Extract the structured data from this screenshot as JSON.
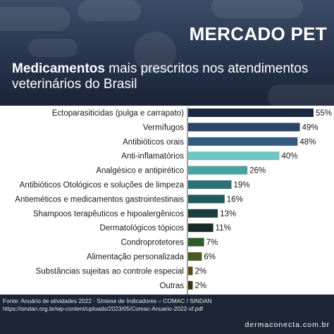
{
  "header": {
    "brand": "MERCADO PET",
    "title_bold": "Medicamentos",
    "title_rest": " mais prescritos nos atendimentos veterinários do Brasil"
  },
  "chart_data": {
    "type": "bar",
    "orientation": "horizontal",
    "xlim": [
      0,
      55
    ],
    "grid": false,
    "categories": [
      "Ectoparasiticidas (pulga e carrapato)",
      "Vermífugos",
      "Antibióticos orais",
      "Anti-inflamatórios",
      "Analgésico e antipirético",
      "Antibióticos Otológicos e soluções de limpeza",
      "Antieméticos e medicamentos gastrointestinais",
      "Shampoos terapêuticos e hipoalergênicos",
      "Dermatológicos tópicos",
      "Condroprotetores",
      "Alimentação personalizada",
      "Substâncias sujeitas ao controle especial",
      "Outras"
    ],
    "values": [
      55,
      49,
      48,
      40,
      26,
      19,
      16,
      13,
      11,
      7,
      6,
      2,
      2
    ],
    "value_labels": [
      "55%",
      "49%",
      "48%",
      "40%",
      "26%",
      "19%",
      "16%",
      "13%",
      "11%",
      "7%",
      "6%",
      "2%",
      "2%"
    ],
    "colors": [
      "#1a2840",
      "#2e4466",
      "#345a80",
      "#6cc6c2",
      "#4aa3a1",
      "#2d7175",
      "#215a5c",
      "#1c3e3e",
      "#162a2a",
      "#2e5a2c",
      "#4a5a22",
      "#5a4a12",
      "#3a3410"
    ]
  },
  "footer": {
    "source_line1": "Fonte: Anuário de atividades 2022 · Síntese de Indicadores – COMAC / SINDAN",
    "source_line2": "https://sindan.org.br/wp-content/uploads/2023/05/Comac-Anuario-2022-vf.pdf",
    "website": "dermaconecta.com.br"
  }
}
